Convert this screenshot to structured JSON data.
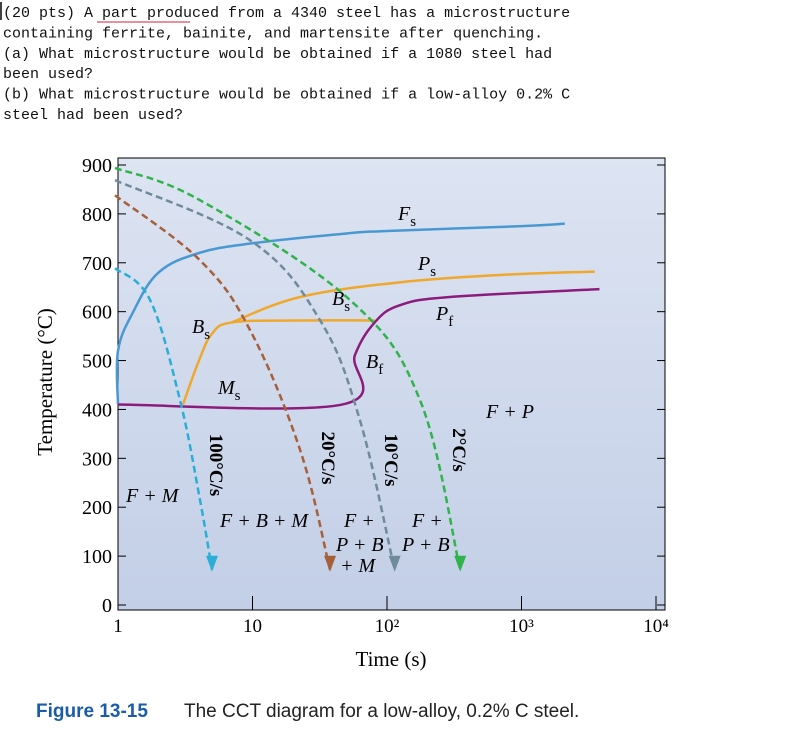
{
  "question": {
    "lines": [
      "(20 pts) A part produced from a 4340 steel has a microstructure",
      "containing ferrite, bainite, and martensite after quenching.",
      "(a) What microstructure would be obtained if a 1080 steel had",
      "been used?",
      "(b) What microstructure would be obtained if a low-alloy 0.2% C",
      "steel had been used?"
    ]
  },
  "chart_data": {
    "type": "cct",
    "x_label": "Time (s)",
    "y_label": "Temperature (°C)",
    "log_x": true,
    "xlim": [
      1,
      10000
    ],
    "ylim": [
      0,
      900
    ],
    "xticks": [
      1,
      10,
      {
        "value": 100,
        "label": "10²"
      },
      {
        "value": 1000,
        "label": "10³"
      },
      {
        "value": 10000,
        "label": "10⁴"
      }
    ],
    "yticks": [
      0,
      100,
      200,
      300,
      400,
      500,
      600,
      700,
      800,
      900
    ],
    "curves": [
      {
        "color": "#4a98d2",
        "x": [
          1,
          1,
          1.3,
          2,
          4,
          10,
          50,
          100,
          1000,
          2100
        ],
        "values": [
          410,
          520,
          600,
          680,
          720,
          740,
          760,
          765,
          775,
          780
        ]
      },
      {
        "color": "#f0a82c",
        "x": [
          3.04,
          4,
          5,
          7,
          20,
          81
        ],
        "values": [
          410,
          500,
          555,
          578,
          582,
          582
        ]
      },
      {
        "color": "#f0a82c",
        "x": [
          7,
          22.6,
          124,
          690,
          3500
        ],
        "values": [
          578,
          630,
          660,
          675,
          682
        ]
      },
      {
        "color": "#8c1c7c",
        "x": [
          1,
          46.3,
          57.7,
          81,
          124,
          293,
          3800
        ],
        "values": [
          410,
          410,
          511,
          578,
          613,
          630,
          646
        ]
      }
    ],
    "series": [
      {
        "name": "100°C/s",
        "color": "#2aaed6",
        "x": [
          1,
          1.73,
          2.89,
          4.07,
          5
        ],
        "values": [
          689,
          624,
          419,
          215,
          72
        ]
      },
      {
        "name": "20°C/s",
        "color": "#a5603a",
        "x": [
          1,
          4.07,
          9.6,
          22.6,
          37.7
        ],
        "values": [
          838,
          705,
          562,
          317,
          72
        ]
      },
      {
        "name": "10°C/s",
        "color": "#6f8b9b",
        "x": [
          1,
          9.6,
          31.7,
          62.9,
          114
        ],
        "values": [
          869,
          746,
          583,
          378,
          72
        ]
      },
      {
        "name": "2°C/s",
        "color": "#2fb34a",
        "x": [
          1,
          4.07,
          53,
          176,
          350
        ],
        "values": [
          894,
          828,
          624,
          419,
          72
        ]
      }
    ],
    "annotations": [
      {
        "label": "F",
        "sub": "s"
      },
      {
        "label": "P",
        "sub": "s"
      },
      {
        "label": "P",
        "sub": "f"
      },
      {
        "label": "B",
        "sub": "s"
      },
      {
        "label": "B",
        "sub": "s"
      },
      {
        "label": "B",
        "sub": "f"
      },
      {
        "label": "M",
        "sub": "s"
      },
      {
        "label": "F + P"
      },
      {
        "label": "F + M"
      },
      {
        "label": "F + B + M"
      },
      {
        "label": "F +"
      },
      {
        "label": "P + B"
      },
      {
        "label": "+ M"
      },
      {
        "label": "F +"
      },
      {
        "label": "P + B"
      }
    ]
  },
  "caption": {
    "number": "Figure 13-15",
    "text": "The CCT diagram for a low-alloy, 0.2% C steel."
  }
}
